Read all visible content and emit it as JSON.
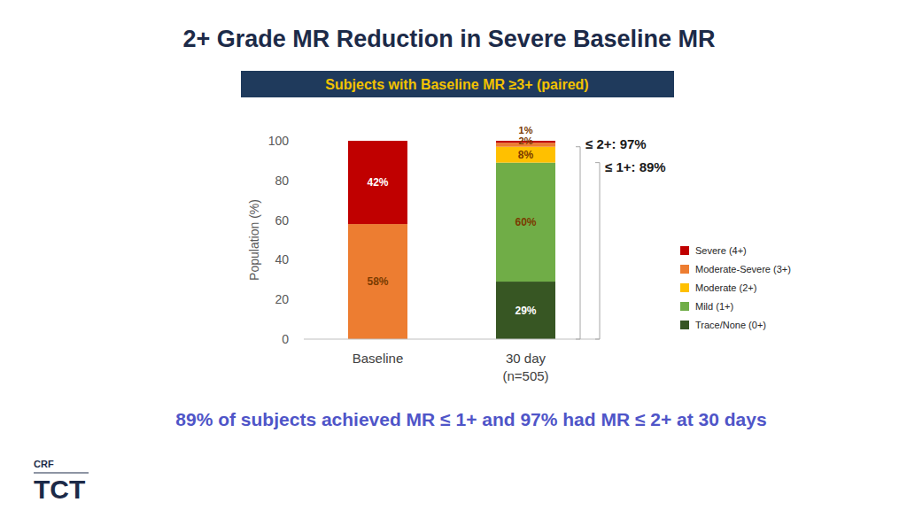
{
  "chart_data": {
    "type": "bar",
    "stacked": true,
    "data_labels": true,
    "grid": false,
    "title": "2+ Grade MR Reduction in Severe Baseline MR",
    "subtitle": "Subjects with Baseline MR ≥3+ (paired)",
    "y_label": "Population (%)",
    "caption": "89% of subjects achieved MR ≤ 1+ and 97% had MR ≤ 2+ at 30 days",
    "categories": [
      "Baseline",
      "30 day\n(n=505)"
    ],
    "ylim": [
      0,
      100
    ],
    "yticks": [
      0,
      20,
      40,
      60,
      80,
      100
    ],
    "legend": "right",
    "series": [
      {
        "name": "Trace/None (0+)",
        "color": "#375623",
        "values": [
          0,
          29
        ],
        "value_labels": [
          null,
          "29%"
        ]
      },
      {
        "name": "Mild (1+)",
        "color": "#70ad47",
        "values": [
          0,
          60
        ],
        "value_labels": [
          null,
          "60%"
        ]
      },
      {
        "name": "Moderate (2+)",
        "color": "#ffc000",
        "values": [
          0,
          8
        ],
        "value_labels": [
          null,
          "8%"
        ]
      },
      {
        "name": "Moderate-Severe (3+)",
        "color": "#ed7d31",
        "values": [
          58,
          2
        ],
        "value_labels": [
          "58%",
          "2%"
        ]
      },
      {
        "name": "Severe (4+)",
        "color": "#c00000",
        "values": [
          42,
          1
        ],
        "value_labels": [
          "42%",
          "1%"
        ]
      }
    ],
    "annotations": [
      {
        "text": "≤ 2+: 97%",
        "value": 97
      },
      {
        "text": "≤ 1+: 89%",
        "value": 89
      }
    ]
  },
  "logo": {
    "small": "CRF",
    "large": "TCT"
  }
}
